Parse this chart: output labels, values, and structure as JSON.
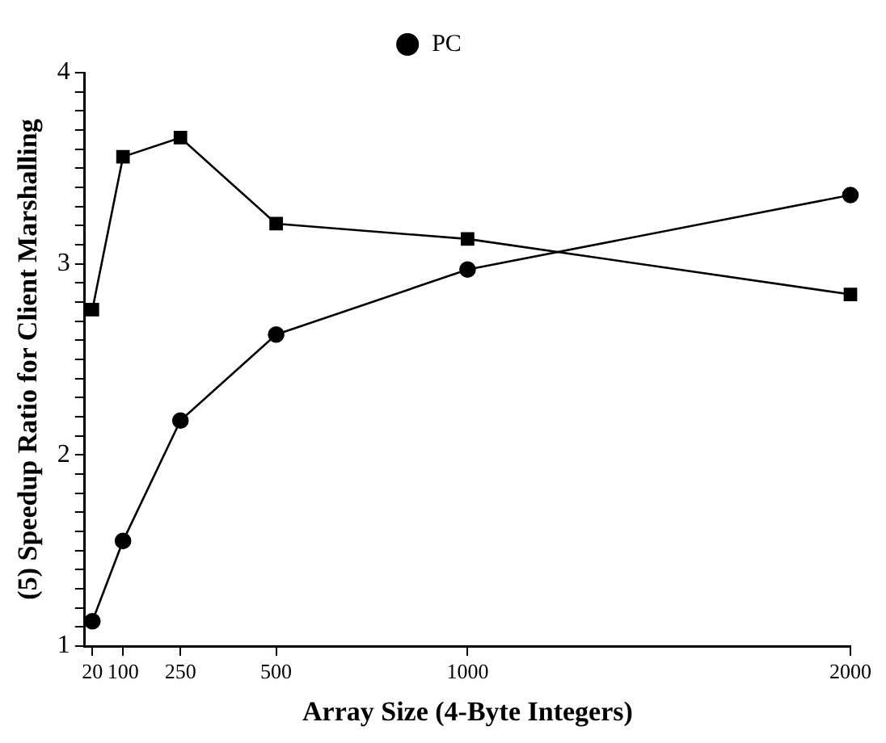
{
  "chart_data": {
    "type": "line",
    "xlabel": "Array Size (4-Byte Integers)",
    "ylabel": "(5) Speedup Ratio for Client Marshalling",
    "x": [
      20,
      100,
      250,
      500,
      1000,
      2000
    ],
    "series": [
      {
        "name": "PC",
        "color": "#000000",
        "marker": "circle",
        "values": [
          1.13,
          1.55,
          2.18,
          2.63,
          2.97,
          3.36
        ]
      },
      {
        "color": "#000000",
        "marker": "square",
        "values": [
          2.76,
          3.56,
          3.66,
          3.21,
          3.13,
          2.84
        ]
      }
    ],
    "xlim": [
      0,
      2000
    ],
    "xticks": [
      20,
      100,
      250,
      500,
      1000,
      2000
    ],
    "ylim": [
      1,
      4
    ],
    "yticks": [
      1,
      {
        "value": 1.1,
        "label": null
      },
      {
        "value": 1.2,
        "label": null
      },
      {
        "value": 1.3,
        "label": null
      },
      {
        "value": 1.4,
        "label": null
      },
      {
        "value": 1.5,
        "label": null
      },
      {
        "value": 1.6,
        "label": null
      },
      {
        "value": 1.7,
        "label": null
      },
      {
        "value": 1.8,
        "label": null
      },
      {
        "value": 1.9,
        "label": null
      },
      2,
      {
        "value": 2.1,
        "label": null
      },
      {
        "value": 2.2,
        "label": null
      },
      {
        "value": 2.3,
        "label": null
      },
      {
        "value": 2.4,
        "label": null
      },
      {
        "value": 2.5,
        "label": null
      },
      {
        "value": 2.6,
        "label": null
      },
      {
        "value": 2.7,
        "label": null
      },
      {
        "value": 2.8,
        "label": null
      },
      {
        "value": 2.9,
        "label": null
      },
      3,
      {
        "value": 3.1,
        "label": null
      },
      {
        "value": 3.2,
        "label": null
      },
      {
        "value": 3.3,
        "label": null
      },
      {
        "value": 3.4,
        "label": null
      },
      {
        "value": 3.5,
        "label": null
      },
      {
        "value": 3.6,
        "label": null
      },
      {
        "value": 3.7,
        "label": null
      },
      {
        "value": 3.8,
        "label": null
      },
      {
        "value": 3.9,
        "label": null
      },
      4
    ],
    "grid": false,
    "legend": "top",
    "line_style": "solid"
  }
}
